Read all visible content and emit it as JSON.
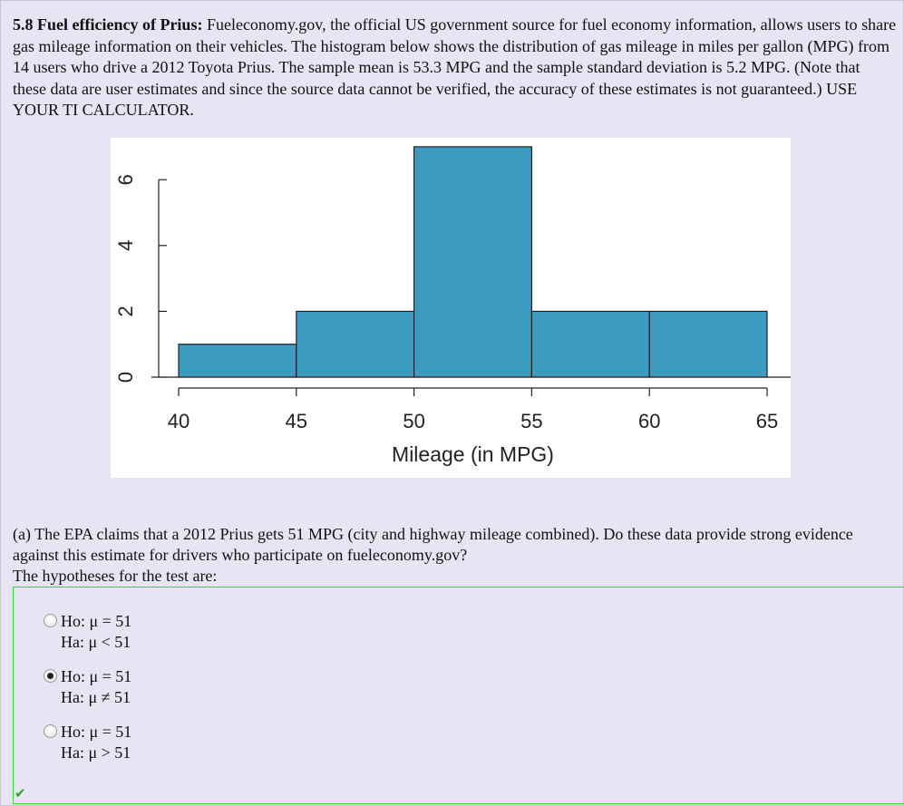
{
  "problem": {
    "title": "5.8 Fuel efficiency of Prius:",
    "body": "Fueleconomy.gov, the official US government source for fuel economy information, allows users to share gas mileage information on their vehicles. The histogram below shows the distribution of gas mileage in miles per gallon (MPG) from 14 users who drive a 2012 Toyota Prius. The sample mean is 53.3 MPG and the sample standard deviation is 5.2 MPG. (Note that these data are user estimates and since the source data cannot be verified, the accuracy of these estimates is not guaranteed.) USE YOUR TI CALCULATOR."
  },
  "chart_data": {
    "type": "bar",
    "bins": [
      [
        40,
        45
      ],
      [
        45,
        50
      ],
      [
        50,
        55
      ],
      [
        55,
        60
      ],
      [
        60,
        65
      ]
    ],
    "values": [
      1,
      2,
      7,
      2,
      2
    ],
    "xlabel": "Mileage (in MPG)",
    "ylabel": "",
    "xticks": [
      "40",
      "45",
      "50",
      "55",
      "60",
      "65"
    ],
    "yticks": [
      "0",
      "2",
      "4",
      "6"
    ],
    "xlim": [
      40,
      65
    ],
    "ylim": [
      0,
      7
    ],
    "bar_color": "#3d9bc2",
    "grid": false
  },
  "question": {
    "line1": "(a) The EPA claims that a 2012 Prius gets 51 MPG (city and highway mileage combined). Do these data provide strong evidence against this estimate for drivers who participate on fueleconomy.gov?",
    "line2": "The hypotheses for the test are:"
  },
  "options": [
    {
      "ho": "Ho: μ = 51",
      "ha": "Ha: μ < 51",
      "selected": false
    },
    {
      "ho": "Ho: μ = 51",
      "ha": "Ha: μ ≠ 51",
      "selected": true
    },
    {
      "ho": "Ho: μ = 51",
      "ha": "Ha: μ > 51",
      "selected": false
    }
  ],
  "feedback": {
    "icon": "checkmark-icon",
    "symbol": "✔",
    "color": "#2aa52a"
  }
}
